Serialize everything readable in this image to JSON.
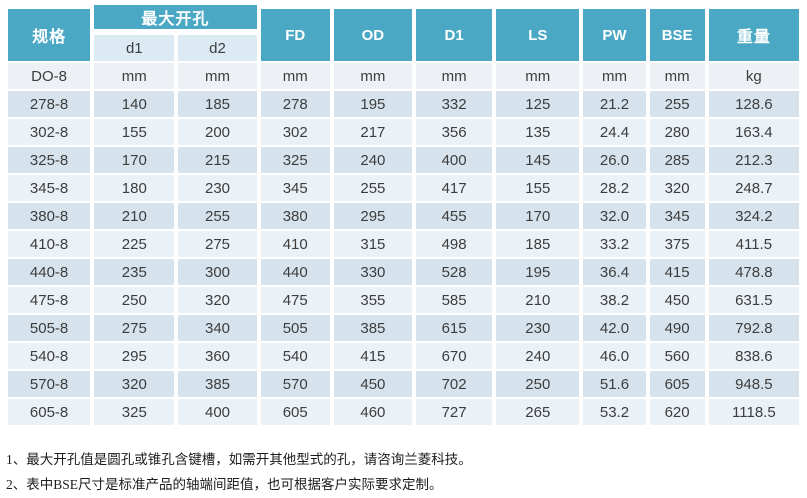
{
  "colors": {
    "teal": "#4aa8c4",
    "sub_bg": "#dcebf3",
    "band_dark": "#d6e3ec",
    "band_light": "#eaf1f7",
    "unit_bg": "#edf1f6",
    "text": "#3d3d3d"
  },
  "table": {
    "header": {
      "spec": "规格",
      "max_opening": "最大开孔",
      "d1": "d1",
      "d2": "d2",
      "cols": [
        "FD",
        "OD",
        "D1",
        "LS",
        "PW",
        "BSE",
        "重量"
      ]
    },
    "unit_row": [
      "DO-8",
      "mm",
      "mm",
      "mm",
      "mm",
      "mm",
      "mm",
      "mm",
      "mm",
      "kg"
    ],
    "data_rows": [
      [
        "278-8",
        "140",
        "185",
        "278",
        "195",
        "332",
        "125",
        "21.2",
        "255",
        "128.6"
      ],
      [
        "302-8",
        "155",
        "200",
        "302",
        "217",
        "356",
        "135",
        "24.4",
        "280",
        "163.4"
      ],
      [
        "325-8",
        "170",
        "215",
        "325",
        "240",
        "400",
        "145",
        "26.0",
        "285",
        "212.3"
      ],
      [
        "345-8",
        "180",
        "230",
        "345",
        "255",
        "417",
        "155",
        "28.2",
        "320",
        "248.7"
      ],
      [
        "380-8",
        "210",
        "255",
        "380",
        "295",
        "455",
        "170",
        "32.0",
        "345",
        "324.2"
      ],
      [
        "410-8",
        "225",
        "275",
        "410",
        "315",
        "498",
        "185",
        "33.2",
        "375",
        "411.5"
      ],
      [
        "440-8",
        "235",
        "300",
        "440",
        "330",
        "528",
        "195",
        "36.4",
        "415",
        "478.8"
      ],
      [
        "475-8",
        "250",
        "320",
        "475",
        "355",
        "585",
        "210",
        "38.2",
        "450",
        "631.5"
      ],
      [
        "505-8",
        "275",
        "340",
        "505",
        "385",
        "615",
        "230",
        "42.0",
        "490",
        "792.8"
      ],
      [
        "540-8",
        "295",
        "360",
        "540",
        "415",
        "670",
        "240",
        "46.0",
        "560",
        "838.6"
      ],
      [
        "570-8",
        "320",
        "385",
        "570",
        "450",
        "702",
        "250",
        "51.6",
        "605",
        "948.5"
      ],
      [
        "605-8",
        "325",
        "400",
        "605",
        "460",
        "727",
        "265",
        "53.2",
        "620",
        "1118.5"
      ]
    ]
  },
  "notes": [
    "1、最大开孔值是圆孔或锥孔含键槽，如需开其他型式的孔，请咨询兰菱科技。",
    "2、表中BSE尺寸是标准产品的轴端间距值，也可根据客户实际要求定制。"
  ]
}
